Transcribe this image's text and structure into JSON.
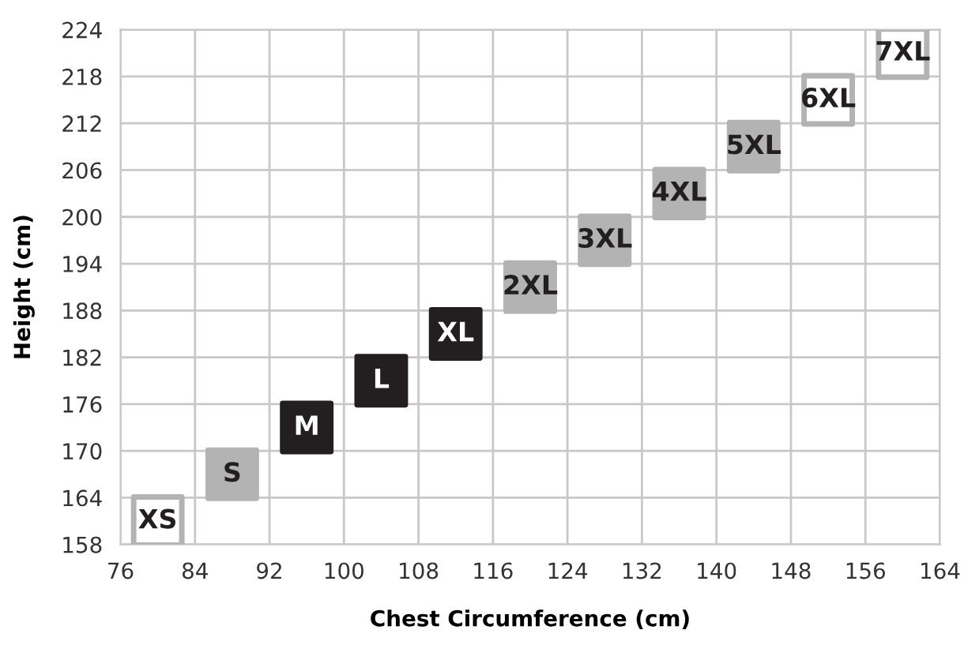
{
  "chart_data": {
    "type": "scatter",
    "xlabel": "Chest Circumference (cm)",
    "ylabel": "Height (cm)",
    "x": [
      80,
      88,
      96,
      104,
      112,
      120,
      128,
      136,
      144,
      152,
      160
    ],
    "values": [
      161,
      167,
      173,
      179,
      185,
      191,
      197,
      203,
      209,
      215,
      221
    ],
    "colors": [
      "#ffffff",
      "#b3b3b3",
      "#231f20",
      "#231f20",
      "#231f20",
      "#b3b3b3",
      "#b3b3b3",
      "#b3b3b3",
      "#b3b3b3",
      "#ffffff",
      "#ffffff"
    ],
    "marker": "square",
    "annotations": [
      {
        "text": "XS",
        "x": 80,
        "y": 161
      },
      {
        "text": "S",
        "x": 88,
        "y": 167
      },
      {
        "text": "M",
        "x": 96,
        "y": 173
      },
      {
        "text": "L",
        "x": 104,
        "y": 179
      },
      {
        "text": "XL",
        "x": 112,
        "y": 185
      },
      {
        "text": "2XL",
        "x": 120,
        "y": 191
      },
      {
        "text": "3XL",
        "x": 128,
        "y": 197
      },
      {
        "text": "4XL",
        "x": 136,
        "y": 203
      },
      {
        "text": "5XL",
        "x": 144,
        "y": 209
      },
      {
        "text": "6XL",
        "x": 152,
        "y": 215
      },
      {
        "text": "7XL",
        "x": 160,
        "y": 221
      }
    ],
    "xlim": [
      76,
      164
    ],
    "ylim": [
      158,
      224
    ],
    "xticks": [
      76,
      84,
      92,
      100,
      108,
      116,
      124,
      132,
      140,
      148,
      156,
      164
    ],
    "yticks": [
      158,
      164,
      170,
      176,
      182,
      188,
      194,
      200,
      206,
      212,
      218,
      224
    ],
    "grid": true
  }
}
